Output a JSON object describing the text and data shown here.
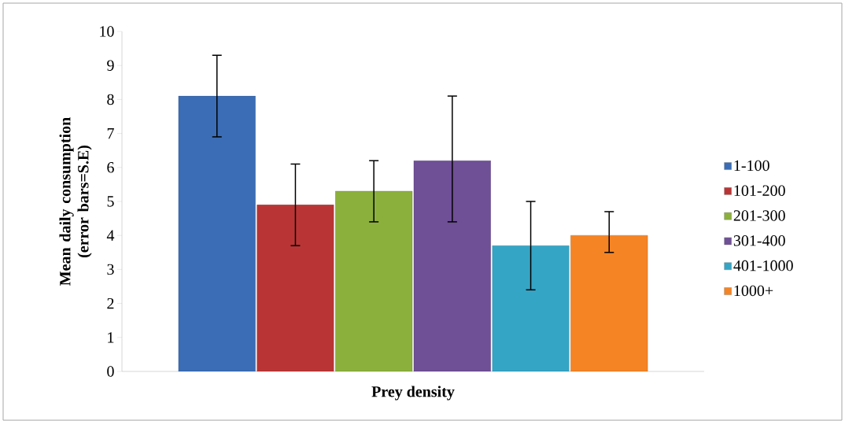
{
  "chart_data": {
    "type": "bar",
    "categories": [
      null
    ],
    "xlabel": "Prey density",
    "ylabel": "Mean daily consumption (error bars=S.E)",
    "ylim": [
      0,
      10
    ],
    "yticks": [
      0,
      1,
      2,
      3,
      4,
      5,
      6,
      7,
      8,
      9,
      10
    ],
    "legend": "right",
    "series": [
      {
        "name": "1-100",
        "color": "#3a6db5",
        "values": [
          8.1
        ],
        "errors": [
          [
            6.9,
            9.3
          ]
        ]
      },
      {
        "name": "101-200",
        "color": "#b93535",
        "values": [
          4.9
        ],
        "errors": [
          [
            3.7,
            6.1
          ]
        ]
      },
      {
        "name": "201-300",
        "color": "#8cb03c",
        "values": [
          5.3
        ],
        "errors": [
          [
            4.4,
            6.2
          ]
        ]
      },
      {
        "name": "301-400",
        "color": "#6f4f96",
        "values": [
          6.2
        ],
        "errors": [
          [
            4.4,
            8.1
          ]
        ]
      },
      {
        "name": "401-1000",
        "color": "#35a5c5",
        "values": [
          3.7
        ],
        "errors": [
          [
            2.4,
            5.0
          ]
        ]
      },
      {
        "name": "1000+",
        "color": "#f58424",
        "values": [
          4.0
        ],
        "errors": [
          [
            3.5,
            4.7
          ]
        ]
      }
    ]
  }
}
